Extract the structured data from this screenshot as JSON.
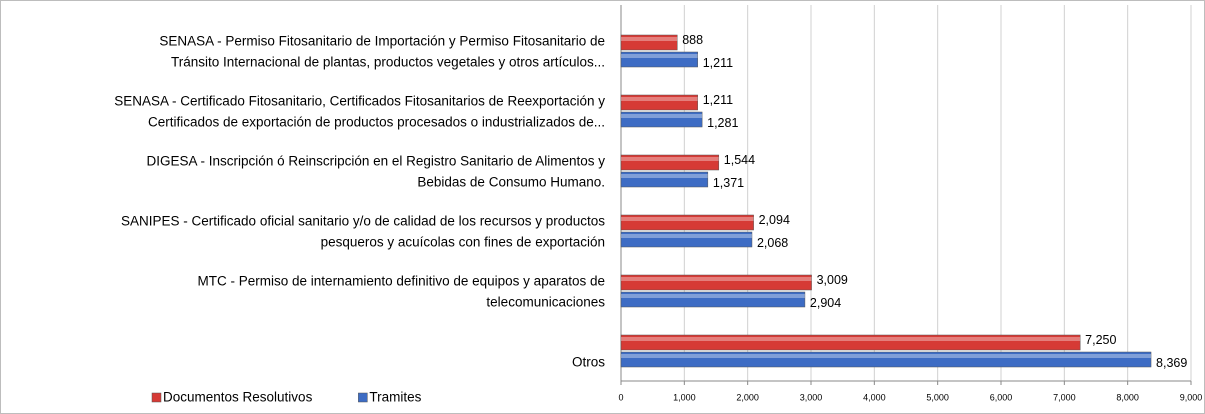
{
  "chart_data": {
    "type": "barh",
    "categories": [
      [
        "SENASA - Permiso Fitosanitario de Importación y Permiso Fitosanitario de",
        "Tránsito Internacional de plantas, productos vegetales y otros artículos..."
      ],
      [
        "SENASA - Certificado Fitosanitario, Certificados Fitosanitarios de Reexportación y",
        "Certificados de exportación de productos procesados o industrializados de..."
      ],
      [
        "DIGESA - Inscripción ó Reinscripción en el Registro Sanitario de Alimentos y",
        "Bebidas de Consumo Humano."
      ],
      [
        "SANIPES - Certificado oficial sanitario y/o de calidad de los recursos y productos",
        "pesqueros y acuícolas con  fines de exportación"
      ],
      [
        "MTC - Permiso de internamiento definitivo de equipos y aparatos de",
        "telecomunicaciones"
      ],
      [
        "Otros"
      ]
    ],
    "series": [
      {
        "name": "Documentos Resolutivos",
        "color": "#d63a35",
        "values": [
          888,
          1211,
          1544,
          2094,
          3009,
          7250
        ],
        "value_labels": [
          "888",
          "1,211",
          "1,544",
          "2,094",
          "3,009",
          "7,250"
        ]
      },
      {
        "name": "Tramites",
        "color": "#3d6cc4",
        "values": [
          1211,
          1281,
          1371,
          2068,
          2904,
          8369
        ],
        "value_labels": [
          "1,211",
          "1,281",
          "1,371",
          "2,068",
          "2,904",
          "8,369"
        ]
      }
    ],
    "xlim": [
      0,
      9000
    ],
    "xticks": [
      0,
      {
        "value": 1000,
        "label": "1,000"
      },
      {
        "value": 2000,
        "label": "2,000"
      },
      {
        "value": 3000,
        "label": "3,000"
      },
      {
        "value": 4000,
        "label": "4,000"
      },
      {
        "value": 5000,
        "label": "5,000"
      },
      {
        "value": 6000,
        "label": "6,000"
      },
      {
        "value": 7000,
        "label": "7,000"
      },
      {
        "value": 8000,
        "label": "8,000"
      },
      {
        "value": 9000,
        "label": "9,000"
      }
    ],
    "grid": true,
    "legend": "bottom-left"
  }
}
